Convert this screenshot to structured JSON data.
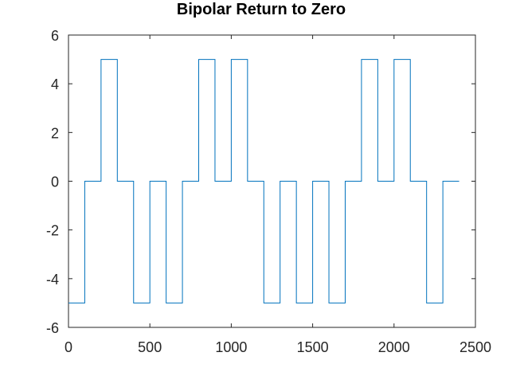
{
  "chart_data": {
    "type": "line",
    "title": "Bipolar Return to Zero",
    "xlabel": "",
    "ylabel": "",
    "xlim": [
      0,
      2500
    ],
    "ylim": [
      -6,
      6
    ],
    "xticks": [
      0,
      500,
      1000,
      1500,
      2000,
      2500
    ],
    "yticks": [
      -6,
      -4,
      -2,
      0,
      2,
      4,
      6
    ],
    "xtick_labels": [
      "0",
      "500",
      "1000",
      "1500",
      "2000",
      "2500"
    ],
    "ytick_labels": [
      "-6",
      "-4",
      "-2",
      "0",
      "2",
      "4",
      "6"
    ],
    "grid": false,
    "legend": "none",
    "line_color": "#0072bd",
    "series": [
      {
        "step": "post",
        "x": [
          0,
          100,
          200,
          300,
          400,
          500,
          600,
          700,
          800,
          900,
          1000,
          1100,
          1200,
          1300,
          1400,
          1500,
          1600,
          1700,
          1800,
          1900,
          2000,
          2100,
          2200,
          2300,
          2400
        ],
        "values": [
          -5,
          0,
          5,
          0,
          -5,
          0,
          -5,
          0,
          5,
          0,
          5,
          0,
          -5,
          0,
          -5,
          0,
          -5,
          0,
          5,
          0,
          5,
          0,
          -5,
          0,
          0
        ]
      }
    ]
  }
}
